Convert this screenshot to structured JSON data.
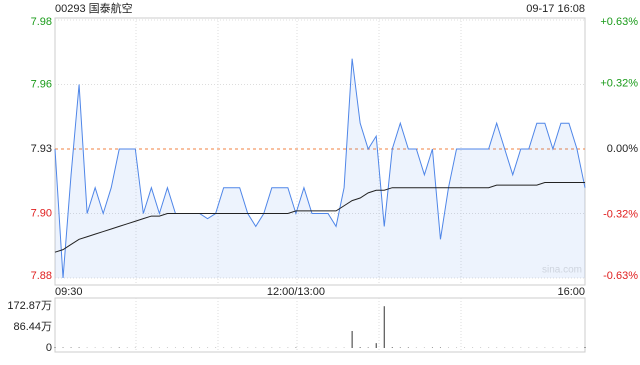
{
  "chart_data": [
    {
      "type": "line",
      "title": "00293 国泰航空",
      "subtitle": "09-17 16:08",
      "watermark": "sina.com",
      "categories": [
        "09:30",
        null,
        null,
        null,
        null,
        null,
        null,
        null,
        null,
        null,
        null,
        null,
        null,
        null,
        null,
        null,
        null,
        null,
        null,
        null,
        null,
        null,
        null,
        null,
        null,
        null,
        null,
        null,
        null,
        null,
        "12:00/13:00",
        null,
        null,
        null,
        null,
        null,
        null,
        null,
        null,
        null,
        null,
        null,
        null,
        null,
        null,
        null,
        null,
        null,
        null,
        null,
        null,
        null,
        null,
        null,
        null,
        null,
        null,
        null,
        null,
        null,
        null,
        null,
        null,
        null,
        null,
        null,
        "16:00"
      ],
      "series": [
        {
          "color": "#4f86e8",
          "values": [
            7.93,
            7.88,
            7.92,
            7.955,
            7.905,
            7.915,
            7.905,
            7.915,
            7.93,
            7.93,
            7.93,
            7.905,
            7.915,
            7.905,
            7.915,
            7.905,
            7.905,
            7.905,
            7.905,
            7.903,
            7.905,
            7.915,
            7.915,
            7.915,
            7.905,
            7.9,
            7.905,
            7.915,
            7.915,
            7.915,
            7.905,
            7.915,
            7.905,
            7.905,
            7.905,
            7.9,
            7.915,
            7.965,
            7.94,
            7.93,
            7.935,
            7.9,
            7.93,
            7.94,
            7.93,
            7.93,
            7.92,
            7.93,
            7.895,
            7.915,
            7.93,
            7.93,
            7.93,
            7.93,
            7.93,
            7.94,
            7.93,
            7.92,
            7.93,
            7.93,
            7.94,
            7.94,
            7.93,
            7.94,
            7.94,
            7.93,
            7.915
          ]
        },
        {
          "color": "#222222",
          "values": [
            7.89,
            7.891,
            7.893,
            7.895,
            7.896,
            7.897,
            7.898,
            7.899,
            7.9,
            7.901,
            7.902,
            7.903,
            7.904,
            7.904,
            7.905,
            7.905,
            7.905,
            7.905,
            7.905,
            7.905,
            7.905,
            7.905,
            7.905,
            7.905,
            7.905,
            7.905,
            7.905,
            7.905,
            7.905,
            7.905,
            7.906,
            7.906,
            7.906,
            7.906,
            7.906,
            7.906,
            7.908,
            7.91,
            7.911,
            7.913,
            7.914,
            7.914,
            7.915,
            7.915,
            7.915,
            7.915,
            7.915,
            7.915,
            7.915,
            7.915,
            7.915,
            7.915,
            7.915,
            7.915,
            7.915,
            7.916,
            7.916,
            7.916,
            7.916,
            7.916,
            7.916,
            7.917,
            7.917,
            7.917,
            7.917,
            7.917,
            7.917
          ]
        }
      ],
      "ylim": [
        7.88,
        7.98
      ],
      "yticks": [
        {
          "value": 7.98,
          "label": "7.98"
        },
        {
          "value": 7.955,
          "label": "7.96"
        },
        {
          "value": 7.93,
          "label": "7.93"
        },
        {
          "value": 7.905,
          "label": "7.90"
        },
        {
          "value": 7.88,
          "label": "7.88"
        }
      ],
      "y2lim": [
        -0.63,
        0.63
      ],
      "y2ticks": [
        {
          "value": 0.63,
          "label": "+0.63%"
        },
        {
          "value": 0.32,
          "label": "+0.32%"
        },
        {
          "value": 0,
          "label": "0.00%"
        },
        {
          "value": -0.32,
          "label": "-0.32%"
        },
        {
          "value": -0.63,
          "label": "-0.63%"
        }
      ],
      "up_color": "#1a9b1a",
      "down_color": "#e02020",
      "grid": true
    },
    {
      "type": "bar",
      "color": "#333333",
      "values": [
        3,
        2,
        2,
        2,
        1,
        1,
        1,
        1,
        2,
        1,
        1,
        1,
        1,
        1,
        1,
        1,
        1,
        1,
        1,
        1,
        1,
        1,
        1,
        1,
        1,
        1,
        1,
        1,
        1,
        1,
        2,
        1,
        1,
        1,
        1,
        1,
        1,
        70,
        3,
        2,
        20,
        172,
        3,
        2,
        2,
        1,
        1,
        2,
        2,
        1,
        1,
        1,
        1,
        1,
        1,
        1,
        1,
        1,
        1,
        1,
        1,
        1,
        1,
        1,
        1,
        1,
        4
      ],
      "ylim": [
        0,
        172.87
      ],
      "yticks": [
        {
          "value": 172.87,
          "label": "172.87万"
        },
        {
          "value": 86.44,
          "label": "86.44万"
        },
        0
      ]
    }
  ]
}
